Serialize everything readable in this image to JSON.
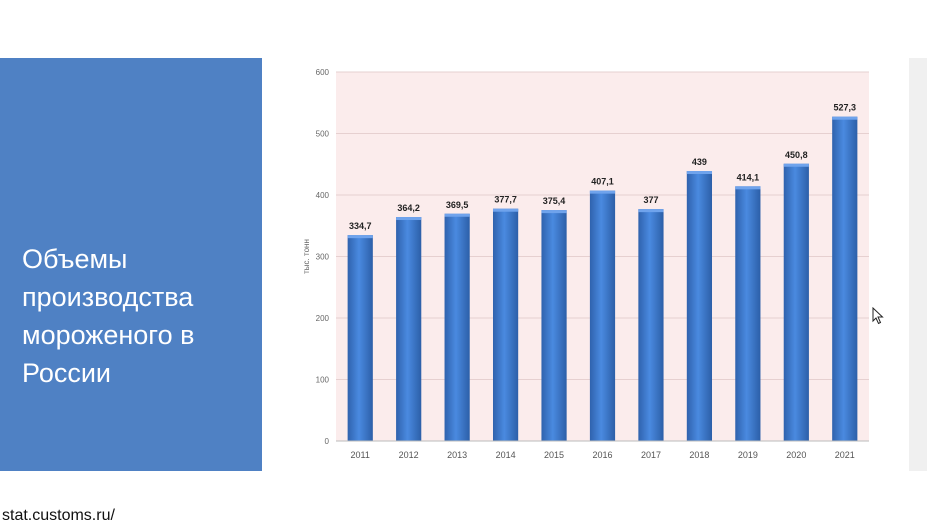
{
  "slide": {
    "title": "Объемы производства мороженого в России",
    "source": "stat.customs.ru/"
  },
  "colors": {
    "panel": "#4f81c4",
    "bar": "#3b76c9",
    "plot_background": "#fbecec"
  },
  "chart_data": {
    "type": "bar",
    "categories": [
      "2011",
      "2012",
      "2013",
      "2014",
      "2015",
      "2016",
      "2017",
      "2018",
      "2019",
      "2020",
      "2021"
    ],
    "values": [
      334.7,
      364.2,
      369.5,
      377.7,
      375.4,
      407.1,
      377,
      439,
      414.1,
      450.8,
      527.3
    ],
    "value_labels": [
      "334,7",
      "364,2",
      "369,5",
      "377,7",
      "375,4",
      "407,1",
      "377",
      "439",
      "414,1",
      "450,8",
      "527,3"
    ],
    "ylabel": "тыс. тонн",
    "ylim": [
      0,
      600
    ],
    "yticks": [
      0,
      100,
      200,
      300,
      400,
      500,
      600
    ],
    "grid": true
  }
}
